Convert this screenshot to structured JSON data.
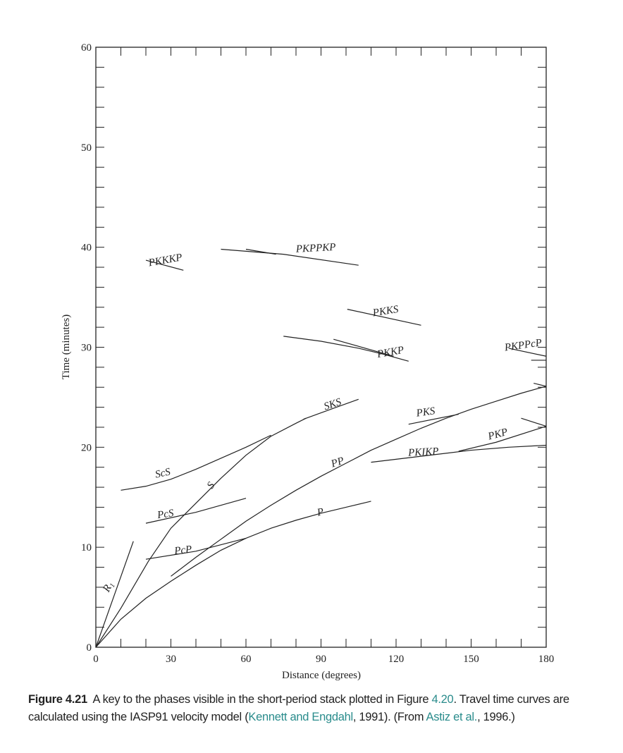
{
  "chart_data": {
    "type": "line",
    "xlabel": "Distance (degrees)",
    "ylabel": "Time (minutes)",
    "xlim": [
      0,
      180
    ],
    "ylim": [
      0,
      60
    ],
    "x_ticks": [
      0,
      30,
      60,
      90,
      120,
      150,
      180
    ],
    "y_ticks": [
      0,
      10,
      20,
      30,
      40,
      50,
      60
    ],
    "x_minor_step": 10,
    "y_minor_step": 2,
    "grid": false,
    "series": [
      {
        "name": "R1",
        "points": [
          [
            0,
            0
          ],
          [
            15,
            10.6
          ]
        ]
      },
      {
        "name": "P",
        "points": [
          [
            0,
            0
          ],
          [
            10,
            2.8
          ],
          [
            20,
            4.9
          ],
          [
            30,
            6.6
          ],
          [
            40,
            8.2
          ],
          [
            50,
            9.7
          ],
          [
            60,
            10.9
          ],
          [
            70,
            11.9
          ],
          [
            80,
            12.7
          ],
          [
            90,
            13.4
          ],
          [
            100,
            14.0
          ],
          [
            110,
            14.6
          ]
        ]
      },
      {
        "name": "S",
        "points": [
          [
            0,
            0
          ],
          [
            10,
            3.9
          ],
          [
            21,
            8.6
          ],
          [
            30,
            11.9
          ],
          [
            38,
            13.9
          ],
          [
            50,
            16.9
          ],
          [
            60,
            19.2
          ],
          [
            70,
            21.1
          ],
          [
            80,
            22.4
          ],
          [
            84,
            22.9
          ]
        ]
      },
      {
        "name": "SKS",
        "points": [
          [
            83,
            22.8
          ],
          [
            95,
            23.9
          ],
          [
            105,
            24.8
          ]
        ]
      },
      {
        "name": "PP",
        "points": [
          [
            30,
            7.1
          ],
          [
            40,
            9.0
          ],
          [
            50,
            10.8
          ],
          [
            60,
            12.6
          ],
          [
            70,
            14.2
          ],
          [
            80,
            15.7
          ],
          [
            90,
            17.1
          ],
          [
            100,
            18.4
          ],
          [
            110,
            19.7
          ],
          [
            120,
            20.8
          ],
          [
            130,
            21.9
          ],
          [
            140,
            22.9
          ],
          [
            150,
            23.8
          ],
          [
            160,
            24.6
          ],
          [
            170,
            25.4
          ],
          [
            180,
            26.1
          ]
        ]
      },
      {
        "name": "PP-branch",
        "points": [
          [
            175,
            26.4
          ],
          [
            180,
            26.1
          ]
        ]
      },
      {
        "name": "ScS",
        "points": [
          [
            10,
            15.7
          ],
          [
            20,
            16.1
          ],
          [
            30,
            16.8
          ],
          [
            40,
            17.8
          ],
          [
            50,
            18.9
          ],
          [
            60,
            20.0
          ],
          [
            70,
            21.2
          ]
        ]
      },
      {
        "name": "PcS",
        "points": [
          [
            20,
            12.4
          ],
          [
            40,
            13.5
          ],
          [
            60,
            14.9
          ]
        ]
      },
      {
        "name": "PcP",
        "points": [
          [
            20,
            8.8
          ],
          [
            40,
            9.6
          ],
          [
            60,
            10.9
          ]
        ]
      },
      {
        "name": "PKIKP",
        "points": [
          [
            110,
            18.5
          ],
          [
            130,
            19.1
          ],
          [
            150,
            19.7
          ],
          [
            165,
            20.0
          ],
          [
            180,
            20.2
          ]
        ]
      },
      {
        "name": "PKP",
        "points": [
          [
            145,
            19.6
          ],
          [
            160,
            20.5
          ],
          [
            180,
            22.1
          ]
        ]
      },
      {
        "name": "PKP-branch",
        "points": [
          [
            170,
            22.9
          ],
          [
            180,
            22.1
          ]
        ]
      },
      {
        "name": "PKS",
        "points": [
          [
            125,
            22.3
          ],
          [
            145,
            23.3
          ]
        ]
      },
      {
        "name": "PKKP",
        "points": [
          [
            75,
            31.1
          ],
          [
            90,
            30.6
          ],
          [
            105,
            29.9
          ],
          [
            115,
            29.3
          ],
          [
            125,
            28.6
          ]
        ]
      },
      {
        "name": "PKKP-branch",
        "points": [
          [
            95,
            30.8
          ],
          [
            119,
            29.1
          ]
        ]
      },
      {
        "name": "PKKS",
        "points": [
          [
            100.5,
            33.8
          ],
          [
            130,
            32.2
          ]
        ]
      },
      {
        "name": "PKPPKP",
        "points": [
          [
            50,
            39.8
          ],
          [
            75,
            39.3
          ],
          [
            105,
            38.2
          ]
        ]
      },
      {
        "name": "PKPPKP-branch",
        "points": [
          [
            60,
            39.8
          ],
          [
            72,
            39.3
          ]
        ]
      },
      {
        "name": "PKKKP",
        "points": [
          [
            20,
            38.7
          ],
          [
            35,
            37.7
          ]
        ]
      },
      {
        "name": "PKPPcP",
        "points": [
          [
            165,
            29.9
          ],
          [
            180,
            29.1
          ]
        ]
      },
      {
        "name": "PKPPcP-branch",
        "points": [
          [
            174,
            28.7
          ],
          [
            180,
            28.7
          ]
        ]
      }
    ],
    "annotations": [
      "R1",
      "P",
      "S",
      "SKS",
      "PP",
      "ScS",
      "PcS",
      "PcP",
      "PKIKP",
      "PKP",
      "PKS",
      "PKKP",
      "PKKS",
      "PKPPKP",
      "PKKKP",
      "PKPPcP"
    ]
  },
  "caption": {
    "figure_label": "Figure 4.21",
    "text_1": "A key to the phases visible in the short-period stack plotted in Figure ",
    "link_figure": "4.20",
    "text_2": ". Travel time curves are calculated using the IASP91 velocity model (",
    "link_ref1": "Kennett and Engdahl",
    "text_3": ", 1991). (From ",
    "link_ref2": "Astiz et al.",
    "text_4": ", 1996.)"
  },
  "colors": {
    "line": "#222222",
    "link": "#2a8c8c"
  }
}
